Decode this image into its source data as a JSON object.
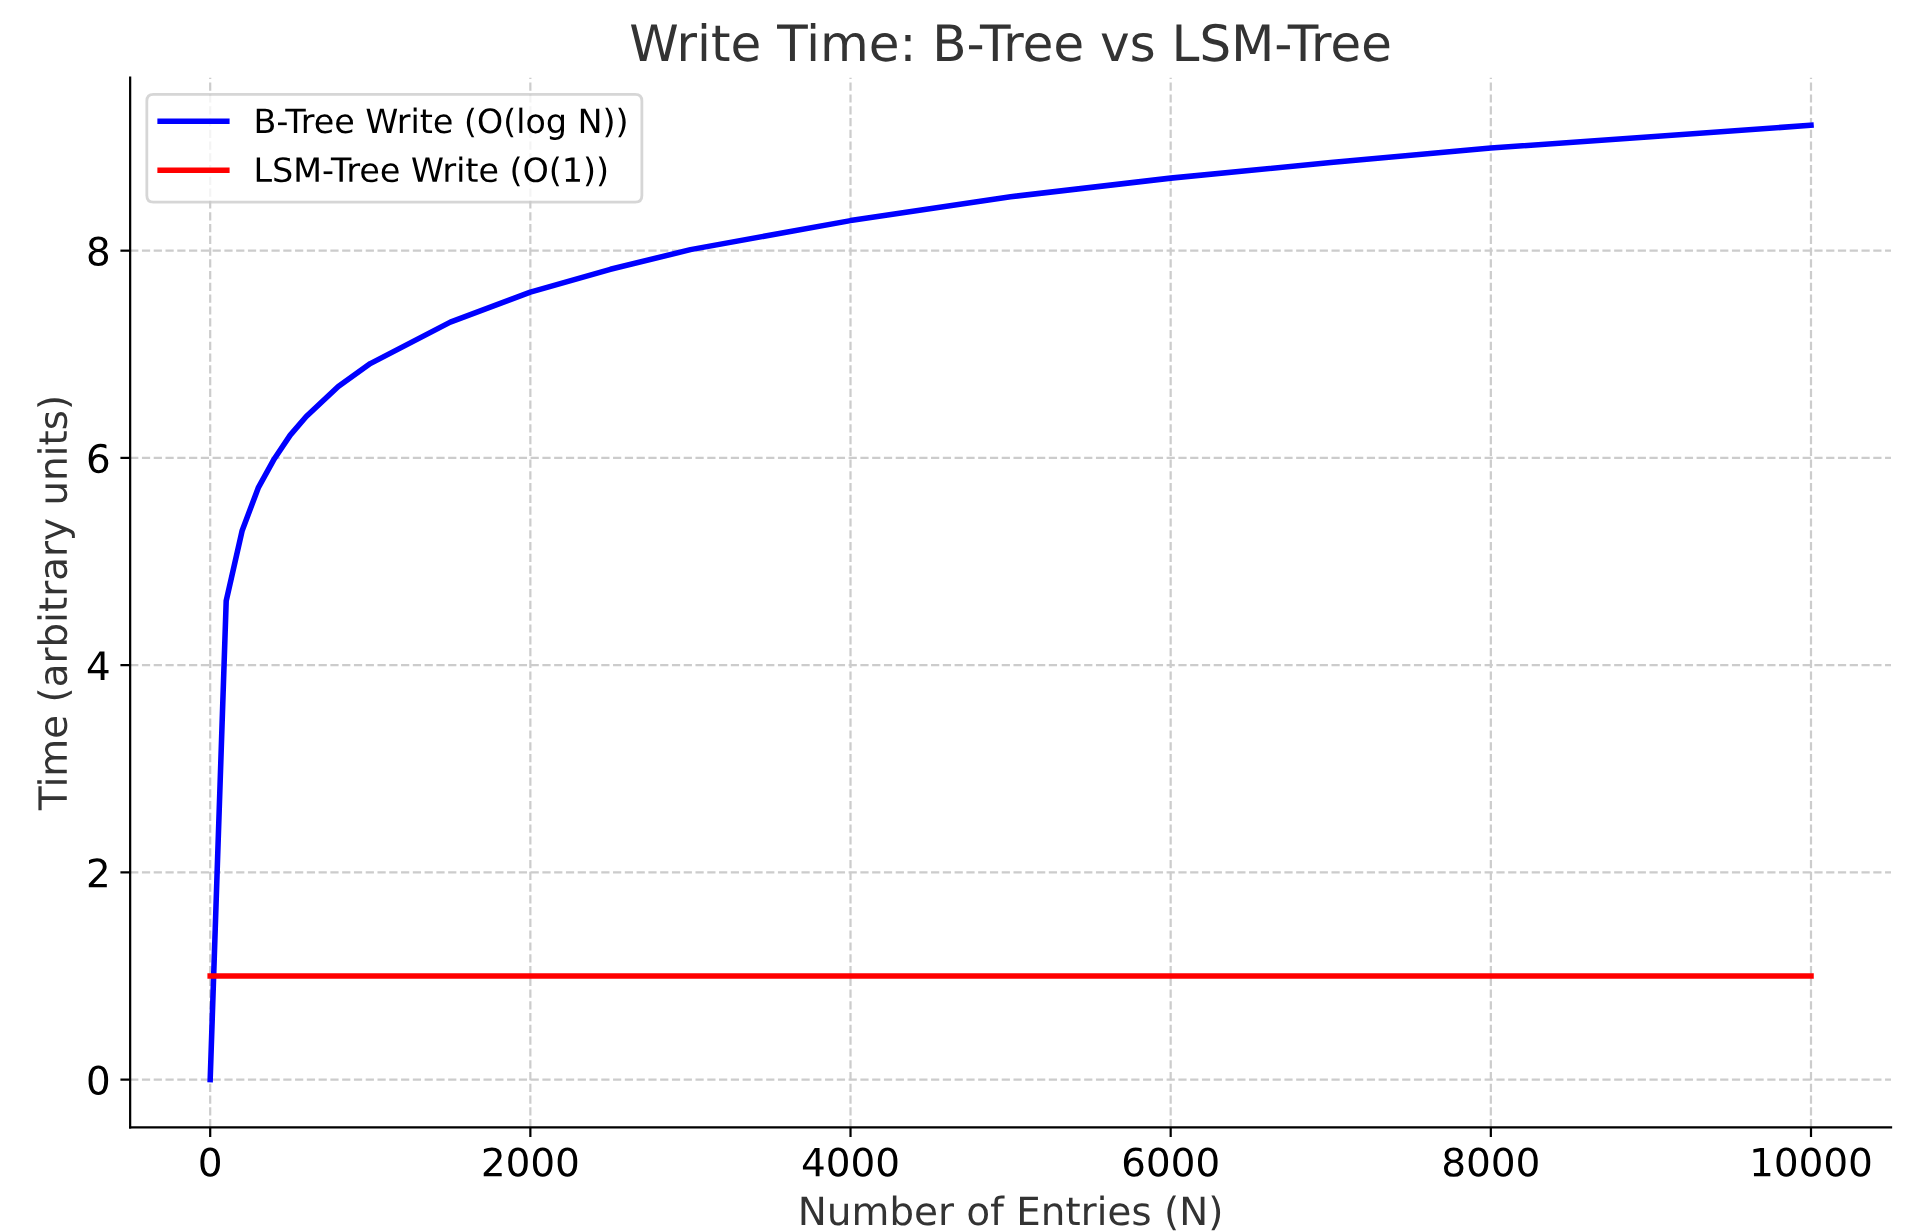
{
  "chart_data": {
    "type": "line",
    "title": "Write Time: B-Tree vs LSM-Tree",
    "xlabel": "Number of Entries (N)",
    "ylabel": "Time (arbitrary units)",
    "series": [
      {
        "name": "B-Tree Write (O(log N))",
        "color": "#0000ff",
        "x": [
          0,
          100,
          200,
          300,
          400,
          500,
          600,
          800,
          1000,
          1500,
          2000,
          2500,
          3000,
          4000,
          5000,
          6000,
          7000,
          8000,
          9000,
          10000
        ],
        "values": [
          0,
          4.62,
          5.3,
          5.71,
          5.99,
          6.22,
          6.4,
          6.69,
          6.91,
          7.31,
          7.6,
          7.82,
          8.01,
          8.29,
          8.52,
          8.7,
          8.85,
          8.99,
          9.1,
          9.21
        ]
      },
      {
        "name": "LSM-Tree Write (O(1))",
        "color": "#ff0000",
        "x": [
          0,
          10000
        ],
        "values": [
          1,
          1
        ]
      }
    ],
    "xlim": [
      -500,
      10500
    ],
    "ylim": [
      -0.46,
      9.67
    ],
    "xticks": [
      0,
      2000,
      4000,
      6000,
      8000,
      10000
    ],
    "yticks": [
      0,
      2,
      4,
      6,
      8
    ],
    "grid": true,
    "legend": "top left",
    "marker": "none",
    "line_style": "solid"
  }
}
